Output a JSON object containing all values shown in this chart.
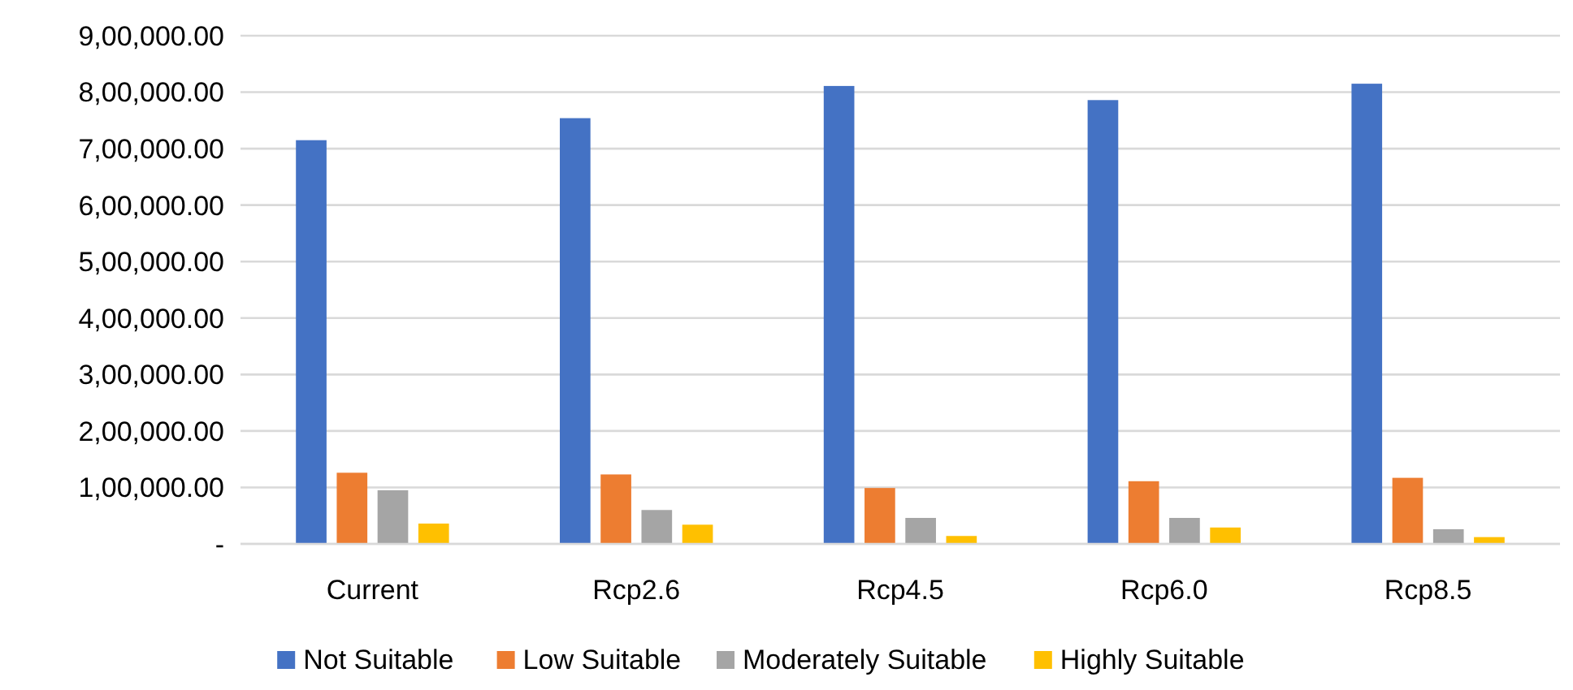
{
  "chart_data": {
    "type": "bar",
    "categories": [
      "Current",
      "Rcp2.6",
      "Rcp4.5",
      "Rcp6.0",
      "Rcp8.5"
    ],
    "series": [
      {
        "name": "Not Suitable",
        "color": "#4472c4",
        "values": [
          715000,
          754000,
          811000,
          786000,
          815000
        ]
      },
      {
        "name": "Low Suitable",
        "color": "#ed7d31",
        "values": [
          126000,
          123000,
          99000,
          111000,
          117000
        ]
      },
      {
        "name": "Moderately Suitable",
        "color": "#a5a5a5",
        "values": [
          95000,
          60000,
          46000,
          46000,
          26000
        ]
      },
      {
        "name": "Highly Suitable",
        "color": "#ffc000",
        "values": [
          36000,
          34000,
          14000,
          29000,
          12000
        ]
      }
    ],
    "ylim": [
      0,
      900000
    ],
    "yticks": [
      {
        "value": 0,
        "label": "-"
      },
      {
        "value": 100000,
        "label": "1,00,000.00"
      },
      {
        "value": 200000,
        "label": "2,00,000.00"
      },
      {
        "value": 300000,
        "label": "3,00,000.00"
      },
      {
        "value": 400000,
        "label": "4,00,000.00"
      },
      {
        "value": 500000,
        "label": "5,00,000.00"
      },
      {
        "value": 600000,
        "label": "6,00,000.00"
      },
      {
        "value": 700000,
        "label": "7,00,000.00"
      },
      {
        "value": 800000,
        "label": "8,00,000.00"
      },
      {
        "value": 900000,
        "label": "9,00,000.00"
      }
    ],
    "grid": "y",
    "legend": "bottom"
  }
}
